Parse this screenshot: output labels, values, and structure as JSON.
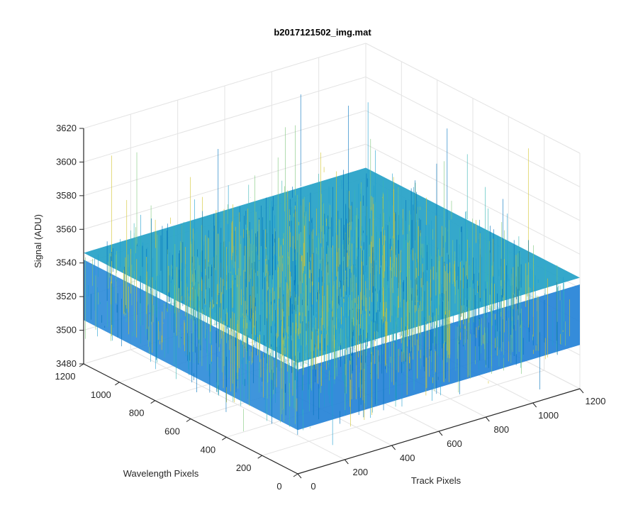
{
  "chart_data": {
    "type": "surface",
    "title": "b2017121502_img.mat",
    "xlabel": "Track Pixels",
    "ylabel": "Wavelength Pixels",
    "zlabel": "Signal (ADU)",
    "xlim": [
      0,
      1200
    ],
    "ylim": [
      0,
      1200
    ],
    "zlim": [
      3480,
      3620
    ],
    "xticks": [
      "0",
      "200",
      "400",
      "600",
      "800",
      "1000",
      "1200"
    ],
    "yticks": [
      "0",
      "200",
      "400",
      "600",
      "800",
      "1000",
      "1200"
    ],
    "zticks": [
      "3480",
      "3500",
      "3520",
      "3540",
      "3560",
      "3580",
      "3600",
      "3620"
    ],
    "grid": true,
    "data_extent": {
      "x": [
        0,
        1200
      ],
      "y": [
        0,
        1200
      ]
    },
    "signal_mean": 3525,
    "signal_typical_range": [
      3500,
      3560
    ],
    "signal_spike_range": [
      3480,
      3610
    ],
    "colormap": [
      "#0000ff",
      "#0072bd",
      "#1e9fd0",
      "#37b5b4",
      "#7ec77c",
      "#d3c52d"
    ]
  }
}
